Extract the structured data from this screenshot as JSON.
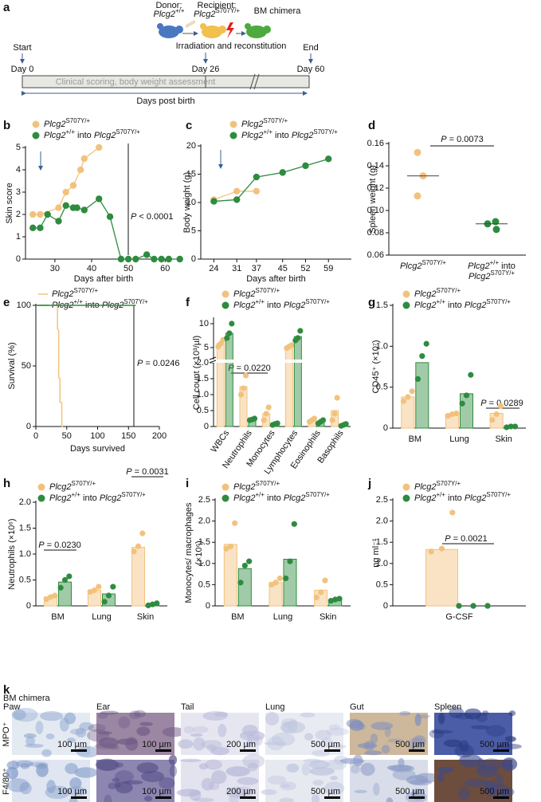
{
  "timeline": {
    "panel": "a",
    "donor_label": "Donor:",
    "donor_genotype": "Plcg2+/+",
    "recipient_label": "Recipient:",
    "recipient_genotype": "Plcg2S707Y/+",
    "chimera_label": "BM chimera",
    "step": "Irradiation and reconstitution",
    "start": "Start",
    "end": "End",
    "days": [
      "Day 0",
      "Day 26",
      "Day 60"
    ],
    "bar_text": "Clinical scoring, body weight assessment",
    "axis_label": "Days post birth"
  },
  "chart_data": [
    {
      "panel": "b",
      "type": "line",
      "ylabel": "Skin score",
      "xlabel": "Days after birth",
      "xlim": [
        22,
        64.5
      ],
      "xticks": [
        30,
        40,
        50,
        60
      ],
      "ylim": [
        0,
        5
      ],
      "yticks": [
        0,
        1,
        2,
        3,
        4,
        5
      ],
      "annotations": [
        "P < 0.0001"
      ],
      "series": [
        {
          "name": "Plcg2S707Y/+",
          "color": "#f2c27d",
          "x": [
            24,
            26,
            31,
            33,
            35,
            37,
            38,
            42
          ],
          "values": [
            2,
            2,
            2.3,
            3,
            3.3,
            4,
            4.5,
            5
          ]
        },
        {
          "name": "Plcg2+/+ into Plcg2S707Y/+",
          "color": "#2e8b3f",
          "x": [
            24,
            26,
            28,
            31,
            33,
            35,
            36,
            38,
            42,
            45,
            48,
            50,
            52,
            55,
            57,
            59,
            61,
            64
          ],
          "values": [
            1.4,
            1.4,
            2,
            1.7,
            2.4,
            2.3,
            2.3,
            2.2,
            2.7,
            1.9,
            0,
            0,
            0,
            0.2,
            0,
            0,
            0,
            0
          ]
        }
      ]
    },
    {
      "panel": "c",
      "type": "line",
      "ylabel": "Body weight (g)",
      "xlabel": "Days after birth",
      "xlim": [
        20,
        66
      ],
      "xticks": [
        24,
        31,
        37,
        45,
        52,
        59
      ],
      "ylim": [
        0,
        20
      ],
      "yticks": [
        0,
        5,
        10,
        15,
        20
      ],
      "series": [
        {
          "name": "Plcg2S707Y/+",
          "color": "#f2c27d",
          "x": [
            24,
            31,
            37
          ],
          "values": [
            10.5,
            12,
            12
          ]
        },
        {
          "name": "Plcg2+/+ into Plcg2S707Y/+",
          "color": "#2e8b3f",
          "x": [
            24,
            31,
            37,
            45,
            52,
            59
          ],
          "values": [
            10.2,
            10.5,
            14.5,
            15.3,
            16.5,
            17.7
          ]
        }
      ]
    },
    {
      "panel": "d",
      "type": "scatter",
      "ylabel": "Spleen weight (g)",
      "ylim": [
        0.06,
        0.16
      ],
      "yticks": [
        0.06,
        0.08,
        {
          "value": 0.1,
          "label": "0.10"
        },
        0.12,
        0.14,
        0.16
      ],
      "categories": [
        "Plcg2S707Y/+",
        "Plcg2+/+ into Plcg2S707Y/+"
      ],
      "colors": [
        "#f2c27d",
        "#2e8b3f"
      ],
      "values": [
        [
          0.152,
          0.131,
          0.113
        ],
        [
          0.09,
          0.088,
          0.083
        ]
      ],
      "means": [
        0.131,
        0.088
      ],
      "annotations": [
        "P = 0.0073"
      ]
    },
    {
      "panel": "e",
      "type": "step",
      "ylabel": "Survival (%)",
      "xlabel": "Days survived",
      "xlim": [
        0,
        200
      ],
      "xticks": [
        0,
        50,
        100,
        150,
        200
      ],
      "ylim": [
        0,
        100
      ],
      "yticks": [
        0,
        50,
        100
      ],
      "annotations": [
        "P = 0.0246"
      ],
      "series": [
        {
          "name": "Plcg2S707Y/+",
          "color": "#f2c27d",
          "x": [
            0,
            35,
            37,
            39,
            42
          ],
          "values": [
            100,
            80,
            40,
            20,
            0
          ]
        },
        {
          "name": "Plcg2+/+ into Plcg2S707Y/+",
          "color": "#2e8b3f",
          "x": [
            0,
            160
          ],
          "values": [
            100,
            100
          ]
        }
      ]
    },
    {
      "panel": "f",
      "type": "bar",
      "ylabel": "Cell count (×10³/µl)",
      "ylim": [
        0,
        11
      ],
      "ysegments": [
        [
          0,
          2
        ],
        [
          2.5,
          11
        ]
      ],
      "yticks": [
        0,
        0.5,
        {
          "value": 1,
          "label": "1.0"
        },
        1.5,
        {
          "value": 2,
          "label": "2.0"
        },
        5,
        10
      ],
      "categories": [
        "WBCs",
        "Neutrophils",
        "Monocytes",
        "Lymphocytes",
        "Eosinophils",
        "Basophils"
      ],
      "annotations": [
        "P = 0.0220"
      ],
      "series": [
        {
          "name": "Plcg2S707Y/+",
          "color": "#f2c27d",
          "values": [
            5.9,
            1.25,
            0.4,
            5.2,
            0.2,
            0.5
          ],
          "points": [
            [
              5.2,
              5.8,
              6.6
            ],
            [
              1,
              1.2,
              1.6
            ],
            [
              0.2,
              0.4,
              0.6
            ],
            [
              4.9,
              5.2,
              5.5
            ],
            [
              0.15,
              0.2,
              0.25
            ],
            [
              0.2,
              0.4,
              0.9
            ]
          ]
        },
        {
          "name": "Plcg2+/+ into Plcg2S707Y/+",
          "color": "#2e8b3f",
          "values": [
            8,
            0.22,
            0.08,
            7.3,
            0.15,
            0.05
          ],
          "points": [
            [
              7,
              8,
              10
            ],
            [
              0.2,
              0.22,
              0.25
            ],
            [
              0.05,
              0.08,
              0.1
            ],
            [
              6.5,
              7,
              8.5
            ],
            [
              0.1,
              0.15,
              0.2
            ],
            [
              0.02,
              0.05,
              0.08
            ]
          ]
        }
      ]
    },
    {
      "panel": "g",
      "type": "bar",
      "ylabel": "CD45⁺ (×10⁷)",
      "ylim": [
        0,
        1.5
      ],
      "yticks": [
        0,
        0.5,
        {
          "value": 1,
          "label": "1.0"
        },
        1.5
      ],
      "categories": [
        "BM",
        "Lung",
        "Skin"
      ],
      "annotations": [
        "P = 0.0289"
      ],
      "series": [
        {
          "name": "Plcg2S707Y/+",
          "color": "#f2c27d",
          "values": [
            0.38,
            0.17,
            0.18
          ],
          "points": [
            [
              0.33,
              0.38,
              0.45
            ],
            [
              0.15,
              0.17,
              0.18
            ],
            [
              0.1,
              0.17,
              0.27
            ]
          ]
        },
        {
          "name": "Plcg2+/+ into Plcg2S707Y/+",
          "color": "#2e8b3f",
          "values": [
            0.8,
            0.42,
            0.02
          ],
          "points": [
            [
              0.6,
              0.88,
              1.03
            ],
            [
              0.3,
              0.4,
              0.65
            ],
            [
              0.01,
              0.02,
              0.02
            ]
          ]
        }
      ]
    },
    {
      "panel": "h",
      "type": "bar",
      "ylabel": "Neutrophils (×10⁶)",
      "ylim": [
        0,
        2
      ],
      "yticks": [
        0,
        0.5,
        {
          "value": 1,
          "label": "1.0"
        },
        1.5,
        {
          "value": 2,
          "label": "2.0"
        }
      ],
      "categories": [
        "BM",
        "Lung",
        "Skin"
      ],
      "annotations": [
        "P = 0.0230",
        "P = 0.0031"
      ],
      "series": [
        {
          "name": "Plcg2S707Y/+",
          "color": "#f2c27d",
          "values": [
            0.17,
            0.3,
            1.13
          ],
          "points": [
            [
              0.13,
              0.17,
              0.2
            ],
            [
              0.27,
              0.3,
              0.37
            ],
            [
              1.05,
              1.15,
              1.4
            ]
          ]
        },
        {
          "name": "Plcg2+/+ into Plcg2S707Y/+",
          "color": "#2e8b3f",
          "values": [
            0.46,
            0.23,
            0.03
          ],
          "points": [
            [
              0.35,
              0.5,
              0.57
            ],
            [
              0.08,
              0.2,
              0.37
            ],
            [
              0.01,
              0.03,
              0.05
            ]
          ]
        }
      ]
    },
    {
      "panel": "i",
      "type": "bar",
      "ylabel": "Monocytes/ macrophages (×10⁶)",
      "ylim": [
        0,
        2.5
      ],
      "yticks": [
        0,
        0.5,
        {
          "value": 1,
          "label": "1.0"
        },
        1.5,
        {
          "value": 2,
          "label": "2.0"
        },
        2.5
      ],
      "categories": [
        "BM",
        "Lung",
        "Skin"
      ],
      "series": [
        {
          "name": "Plcg2S707Y/+",
          "color": "#f2c27d",
          "values": [
            1.45,
            0.55,
            0.37
          ],
          "points": [
            [
              1.35,
              1.4,
              1.95
            ],
            [
              0.5,
              0.55,
              0.65
            ],
            [
              0.2,
              0.32,
              0.6
            ]
          ]
        },
        {
          "name": "Plcg2+/+ into Plcg2S707Y/+",
          "color": "#2e8b3f",
          "values": [
            0.88,
            1.1,
            0.15
          ],
          "points": [
            [
              0.55,
              0.95,
              1.05
            ],
            [
              0.65,
              1.05,
              1.93
            ],
            [
              0.12,
              0.15,
              0.17
            ]
          ]
        }
      ]
    },
    {
      "panel": "j",
      "type": "bar",
      "ylabel": "ng ml⁻¹",
      "ylim": [
        0,
        2.5
      ],
      "yticks": [
        0,
        0.5,
        {
          "value": 1,
          "label": "1.0"
        },
        1.5,
        {
          "value": 2,
          "label": "2.0"
        },
        2.5
      ],
      "categories": [
        "G-CSF"
      ],
      "annotations": [
        "P = 0.0021"
      ],
      "series": [
        {
          "name": "Plcg2S707Y/+",
          "color": "#f2c27d",
          "values": [
            1.33
          ],
          "points": [
            [
              1.28,
              1.35,
              2.2
            ]
          ]
        },
        {
          "name": "Plcg2+/+ into Plcg2S707Y/+",
          "color": "#2e8b3f",
          "values": [
            0
          ],
          "points": [
            [
              0,
              0,
              0,
              0,
              0,
              0
            ]
          ]
        }
      ]
    }
  ],
  "histology": {
    "panel": "k",
    "group": "BM chimera",
    "tissues": [
      "Paw",
      "Ear",
      "Tail",
      "Lung",
      "Gut",
      "Spleen"
    ],
    "stains": [
      "MPO⁺",
      "F4/80⁺"
    ],
    "scale_bars": [
      [
        "100 µm",
        "100 µm",
        "200 µm",
        "500 µm",
        "500 µm",
        "500 µm"
      ],
      [
        "100 µm",
        "100 µm",
        "200 µm",
        "500 µm",
        "500 µm",
        "500 µm"
      ]
    ]
  }
}
